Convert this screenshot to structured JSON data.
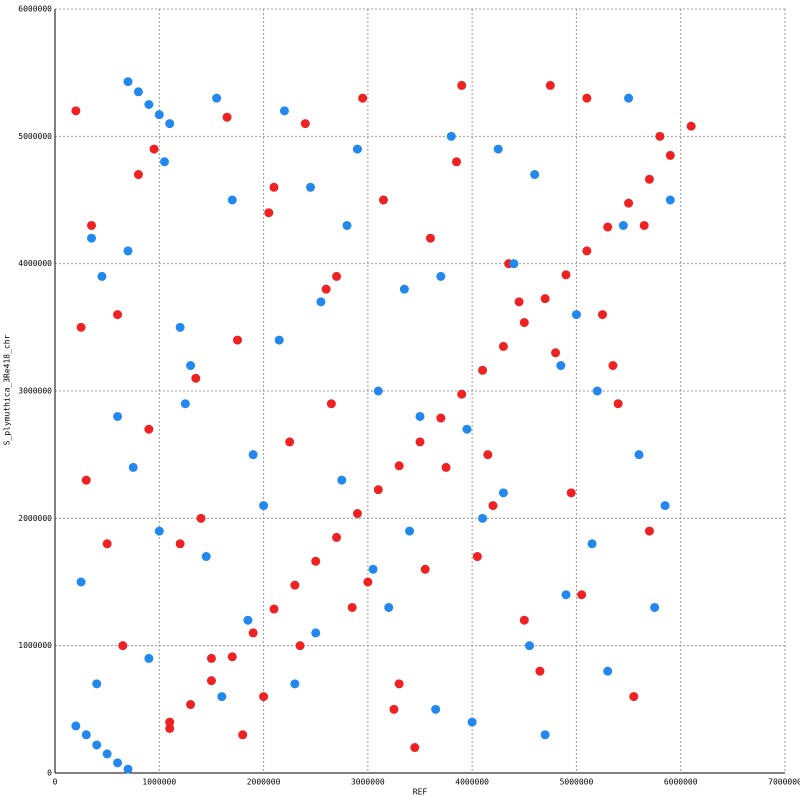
{
  "chart_data": {
    "type": "scatter",
    "xlabel": "REF",
    "ylabel": "S_plymuthica_3Re418_chr",
    "xlim": [
      0,
      7000000
    ],
    "ylim": [
      0,
      6000000
    ],
    "xticks": [
      0,
      1000000,
      2000000,
      3000000,
      4000000,
      5000000,
      6000000,
      7000000
    ],
    "yticks": [
      0,
      1000000,
      2000000,
      3000000,
      4000000,
      5000000,
      6000000
    ],
    "grid": true,
    "series": [
      {
        "color": "#ee2222",
        "x": [
          1100000,
          1300000,
          1500000,
          1700000,
          1900000,
          2100000,
          2300000,
          2500000,
          2700000,
          2900000,
          3100000,
          3300000,
          3500000,
          3700000,
          3900000,
          4100000,
          4300000,
          4500000,
          4700000,
          4900000,
          5100000,
          5300000,
          5500000,
          5700000,
          5900000,
          6100000,
          200000,
          350000,
          600000,
          900000,
          1200000,
          1500000,
          1800000,
          2100000,
          2400000,
          2700000,
          3000000,
          3300000,
          3600000,
          3900000,
          4200000,
          4500000,
          4800000,
          5100000,
          5400000,
          5700000,
          300000,
          650000,
          950000,
          1350000,
          1650000,
          2000000,
          2250000,
          2600000,
          2850000,
          3150000,
          3450000,
          3750000,
          4050000,
          4350000,
          4650000,
          4950000,
          5250000,
          5550000,
          5800000,
          250000,
          500000,
          800000,
          1100000,
          1400000,
          1750000,
          2050000,
          2350000,
          2650000,
          2950000,
          3250000,
          3550000,
          3850000,
          4150000,
          4450000,
          4750000,
          5050000,
          5350000,
          5650000
        ],
        "values": [
          350000,
          537500,
          725000,
          912500,
          1100000,
          1287500,
          1475000,
          1662500,
          1850000,
          2037500,
          2225000,
          2412500,
          2600000,
          2787500,
          2975000,
          3162500,
          3350000,
          3537500,
          3725000,
          3912500,
          4100000,
          4287500,
          4475000,
          4662500,
          4850000,
          5080000,
          5200000,
          4300000,
          3600000,
          2700000,
          1800000,
          900000,
          300000,
          4600000,
          5100000,
          3900000,
          1500000,
          700000,
          4200000,
          5400000,
          2100000,
          1200000,
          3300000,
          5300000,
          2900000,
          1900000,
          2300000,
          1000000,
          4900000,
          3100000,
          5150000,
          600000,
          2600000,
          3800000,
          1300000,
          4500000,
          200000,
          2400000,
          1700000,
          4000000,
          800000,
          2200000,
          3600000,
          600000,
          5000000,
          3500000,
          1800000,
          4700000,
          400000,
          2000000,
          3400000,
          4400000,
          1000000,
          2900000,
          5300000,
          500000,
          1600000,
          4800000,
          2500000,
          3700000,
          5400000,
          1400000,
          3200000,
          4300000
        ]
      },
      {
        "color": "#2288ee",
        "x": [
          700000,
          800000,
          900000,
          1000000,
          1100000,
          200000,
          300000,
          400000,
          500000,
          600000,
          700000,
          250000,
          450000,
          750000,
          1050000,
          1300000,
          1600000,
          1900000,
          2200000,
          2500000,
          2800000,
          3100000,
          3400000,
          3700000,
          4000000,
          4300000,
          4600000,
          4900000,
          5200000,
          5500000,
          5850000,
          350000,
          600000,
          900000,
          1200000,
          1450000,
          1700000,
          2000000,
          2300000,
          2550000,
          2900000,
          3200000,
          3500000,
          3800000,
          4100000,
          4400000,
          4700000,
          5000000,
          5300000,
          5600000,
          5900000,
          400000,
          700000,
          1000000,
          1250000,
          1550000,
          1850000,
          2150000,
          2450000,
          2750000,
          3050000,
          3350000,
          3650000,
          3950000,
          4250000,
          4550000,
          4850000,
          5150000,
          5450000,
          5750000
        ],
        "values": [
          5430000,
          5350000,
          5250000,
          5170000,
          5100000,
          370000,
          300000,
          220000,
          150000,
          80000,
          30000,
          1500000,
          3900000,
          2400000,
          4800000,
          3200000,
          600000,
          2500000,
          5200000,
          1100000,
          4300000,
          3000000,
          1900000,
          3900000,
          400000,
          2200000,
          4700000,
          1400000,
          3000000,
          5300000,
          2100000,
          4200000,
          2800000,
          900000,
          3500000,
          1700000,
          4500000,
          2100000,
          700000,
          3700000,
          4900000,
          1300000,
          2800000,
          5000000,
          2000000,
          4000000,
          300000,
          3600000,
          800000,
          2500000,
          4500000,
          700000,
          4100000,
          1900000,
          2900000,
          5300000,
          1200000,
          3400000,
          4600000,
          2300000,
          1600000,
          3800000,
          500000,
          2700000,
          4900000,
          1000000,
          3200000,
          1800000,
          4300000,
          1300000
        ]
      }
    ]
  }
}
